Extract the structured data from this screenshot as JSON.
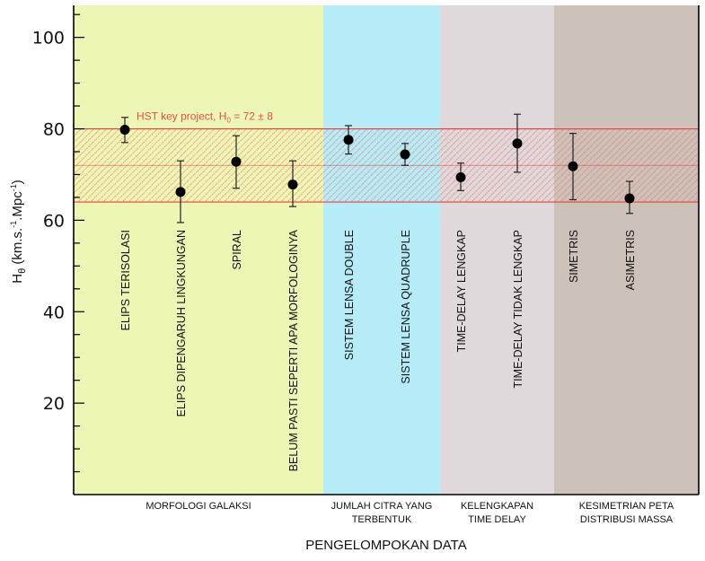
{
  "chart_data": {
    "type": "scatter",
    "ylabel": "H₀ (km.s.⁻¹.Mpc⁻¹)",
    "xlabel": "PENGELOMPOKAN DATA",
    "ylim": [
      0,
      107
    ],
    "yticks": [
      20,
      40,
      60,
      80,
      100
    ],
    "hst": {
      "label_main": "HST key project, H",
      "label_sub": "0",
      "label_tail": " = 72 ± 8",
      "center": 72,
      "low": 64,
      "high": 80,
      "color": "#e8403c"
    },
    "groups": [
      {
        "name_lines": [
          "MORFOLOGI GALAKSI"
        ],
        "color": "#eef6b5"
      },
      {
        "name_lines": [
          "JUMLAH CITRA YANG",
          "TERBENTUK"
        ],
        "color": "#b5ecf7"
      },
      {
        "name_lines": [
          "KELENGKAPAN",
          "TIME DELAY"
        ],
        "color": "#dfd9dc"
      },
      {
        "name_lines": [
          "KESIMETRIAN PETA",
          "DISTRIBUSI MASSA"
        ],
        "color": "#ccc2b9"
      }
    ],
    "points": [
      {
        "label": "ELIPS TERISOLASI",
        "group": 0,
        "value": 79.8,
        "err_low": 77.0,
        "err_high": 82.5
      },
      {
        "label": "ELIPS DIPENGARUH LINGKUNGAN",
        "group": 0,
        "value": 66.2,
        "err_low": 59.5,
        "err_high": 73.0
      },
      {
        "label": "SPIRAL",
        "group": 0,
        "value": 72.8,
        "err_low": 67.0,
        "err_high": 78.5
      },
      {
        "label": "BELUM PASTI SEPERTI APA MORFOLOGINYA",
        "group": 0,
        "value": 67.8,
        "err_low": 63.0,
        "err_high": 73.0
      },
      {
        "label": "SISTEM LENSA DOUBLE",
        "group": 1,
        "value": 77.6,
        "err_low": 74.5,
        "err_high": 80.7
      },
      {
        "label": "SISTEM LENSA QUADRUPLE",
        "group": 1,
        "value": 74.4,
        "err_low": 72.0,
        "err_high": 76.8
      },
      {
        "label": "TIME-DELAY LENGKAP",
        "group": 2,
        "value": 69.4,
        "err_low": 66.5,
        "err_high": 72.5
      },
      {
        "label": "TIME-DELAY TIDAK LENGKAP",
        "group": 2,
        "value": 76.8,
        "err_low": 70.5,
        "err_high": 83.2
      },
      {
        "label": "SIMETRIS",
        "group": 3,
        "value": 71.8,
        "err_low": 64.5,
        "err_high": 79.0
      },
      {
        "label": "ASIMETRIS",
        "group": 3,
        "value": 64.8,
        "err_low": 61.5,
        "err_high": 68.5
      }
    ]
  }
}
